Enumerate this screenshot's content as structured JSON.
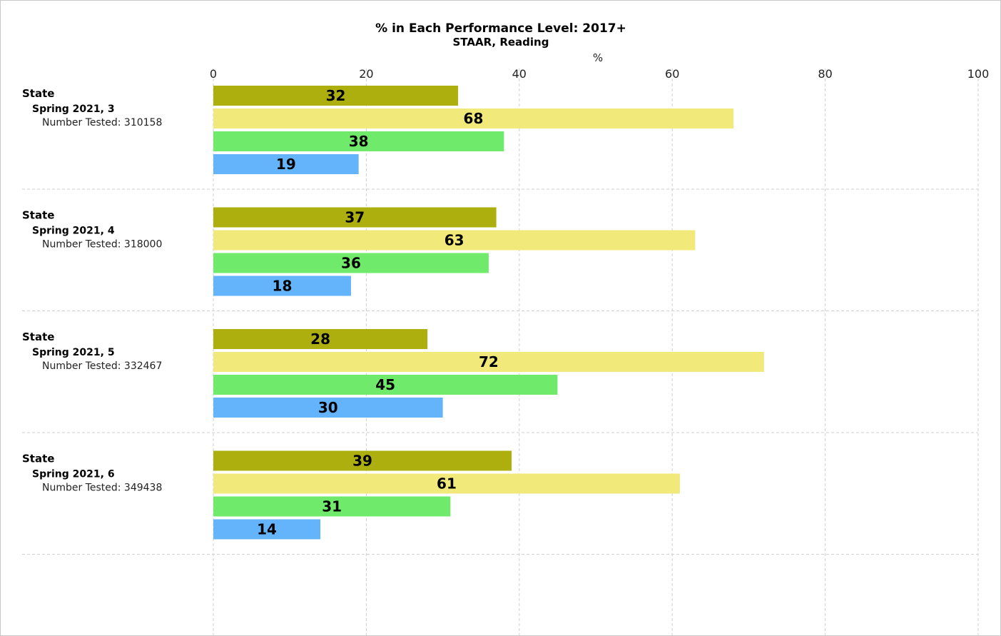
{
  "chart_data": {
    "type": "bar",
    "orientation": "horizontal",
    "title": "% in Each Performance Level: 2017+",
    "subtitle": "STAAR, Reading",
    "xlabel": "%",
    "xlim": [
      0,
      100
    ],
    "xticks": [
      0,
      20,
      40,
      60,
      80,
      100
    ],
    "grid": true,
    "series_colors": [
      "#adaf0e",
      "#f1e97a",
      "#70ea6a",
      "#63b4fb"
    ],
    "groups": [
      {
        "label": "State",
        "sublabel": "Spring 2021, 3",
        "tested_label": "Number Tested: 310158",
        "values": [
          32,
          68,
          38,
          19
        ]
      },
      {
        "label": "State",
        "sublabel": "Spring 2021, 4",
        "tested_label": "Number Tested: 318000",
        "values": [
          37,
          63,
          36,
          18
        ]
      },
      {
        "label": "State",
        "sublabel": "Spring 2021, 5",
        "tested_label": "Number Tested: 332467",
        "values": [
          28,
          72,
          45,
          30
        ]
      },
      {
        "label": "State",
        "sublabel": "Spring 2021, 6",
        "tested_label": "Number Tested: 349438",
        "values": [
          39,
          61,
          31,
          14
        ]
      }
    ]
  }
}
